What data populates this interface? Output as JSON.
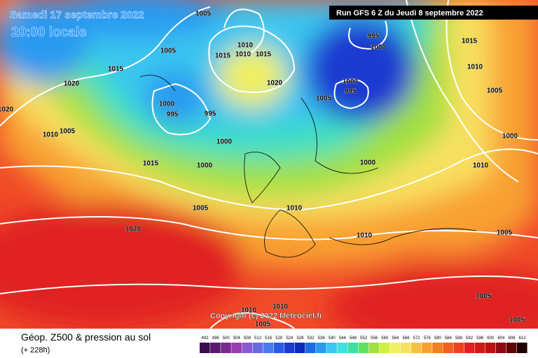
{
  "header": {
    "date": "Samedi 17 septembre 2022",
    "time": "20:00 locale",
    "run": "Run GFS 6 Z du Jeudi 8 septembre 2022"
  },
  "footer": {
    "title": "Géop. Z500 & pression au sol",
    "subtitle": "(+ 228h)",
    "copyright": "Copyright (c) 2022 Meteociel.fr"
  },
  "isobar_labels": [
    "1005",
    "995",
    "1000",
    "1010",
    "1015",
    "1010",
    "1015",
    "1005",
    "1015",
    "1020",
    "1020",
    "1000",
    "995",
    "1005",
    "1000",
    "995",
    "995",
    "1020",
    "1010",
    "1005",
    "1000",
    "1015",
    "1000",
    "1000",
    "1005",
    "1010",
    "1020",
    "1010",
    "1015",
    "1010",
    "1005",
    "1000",
    "1010",
    "1005",
    "1005",
    "1010",
    "1010",
    "1005",
    "1005"
  ],
  "legend": {
    "ticks": [
      492,
      496,
      500,
      504,
      508,
      512,
      516,
      520,
      524,
      528,
      532,
      536,
      540,
      544,
      548,
      552,
      556,
      560,
      564,
      568,
      572,
      576,
      580,
      584,
      588,
      592,
      596,
      600,
      604,
      608,
      612
    ],
    "colors": [
      "#3b0f4f",
      "#5a1a6e",
      "#7a2a90",
      "#9a3bb0",
      "#8a5ad0",
      "#6a6ae0",
      "#4a7af0",
      "#2a5ae6",
      "#1a3ad0",
      "#0a2ab8",
      "#1a6ae6",
      "#2a9af0",
      "#3ac6f0",
      "#40e0e0",
      "#40e0a0",
      "#60e060",
      "#a0e040",
      "#d0f040",
      "#f0f060",
      "#f8e060",
      "#f8c040",
      "#f8a030",
      "#f08020",
      "#f06020",
      "#f04020",
      "#e02020",
      "#d01818",
      "#c01010",
      "#900810",
      "#600408",
      "#200000"
    ]
  }
}
